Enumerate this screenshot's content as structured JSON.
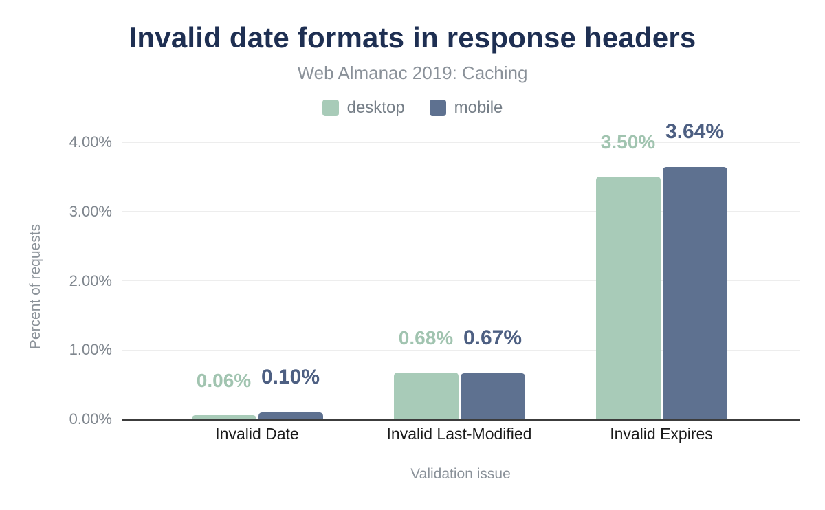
{
  "chart_data": {
    "type": "bar",
    "title": "Invalid date formats in response headers",
    "subtitle": "Web Almanac 2019: Caching",
    "xlabel": "Validation issue",
    "ylabel": "Percent of requests",
    "categories": [
      "Invalid Date",
      "Invalid Last-Modified",
      "Invalid Expires"
    ],
    "series": [
      {
        "name": "desktop",
        "color": "#a8cbb8",
        "label_color": "#a1c4b0",
        "values": [
          0.06,
          0.68,
          3.5
        ],
        "labels": [
          "0.06%",
          "0.68%",
          "3.50%"
        ]
      },
      {
        "name": "mobile",
        "color": "#5e7190",
        "label_color": "#4d5f82",
        "values": [
          0.1,
          0.67,
          3.64
        ],
        "labels": [
          "0.10%",
          "0.67%",
          "3.64%"
        ]
      }
    ],
    "y_ticks": [
      "0.00%",
      "1.00%",
      "2.00%",
      "3.00%",
      "4.00%"
    ],
    "ylim": [
      0,
      4
    ],
    "grid": true,
    "legend_position": "top"
  },
  "colors": {
    "title": "#1e2f52",
    "subtitle_gray": "#8a9199",
    "gridline": "#ededed",
    "axis_line": "#3c3c3c",
    "tick_label": "#7f868e",
    "category_label": "#1a1a1a"
  }
}
